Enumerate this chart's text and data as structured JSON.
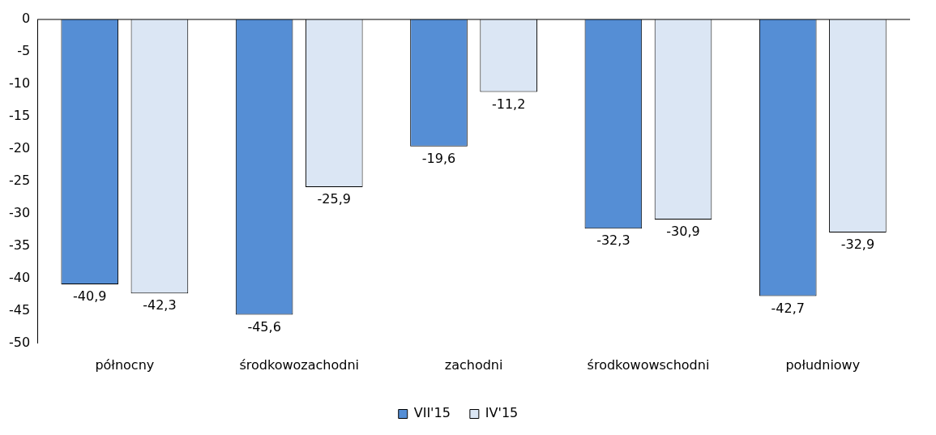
{
  "chart_data": {
    "type": "bar",
    "categories": [
      "północny",
      "środkowozachodni",
      "zachodni",
      "środkowowschodni",
      "południowy"
    ],
    "series": [
      {
        "name": "VII'15",
        "color": "#558ed5",
        "values": [
          -40.9,
          -45.6,
          -19.6,
          -32.3,
          -42.7
        ],
        "value_labels": [
          "-40,9",
          "-45,6",
          "-19,6",
          "-32,3",
          "-42,7"
        ]
      },
      {
        "name": "IV'15",
        "color": "#dbe6f4",
        "values": [
          -42.3,
          -25.9,
          -11.2,
          -30.9,
          -32.9
        ],
        "value_labels": [
          "-42,3",
          "-25,9",
          "-11,2",
          "-30,9",
          "-32,9"
        ]
      }
    ],
    "ylim": [
      -50,
      0
    ],
    "yticks": [
      0,
      -5,
      -10,
      -15,
      -20,
      -25,
      -30,
      -35,
      -40,
      -45,
      -50
    ],
    "grid": false,
    "legend": "bottom"
  }
}
